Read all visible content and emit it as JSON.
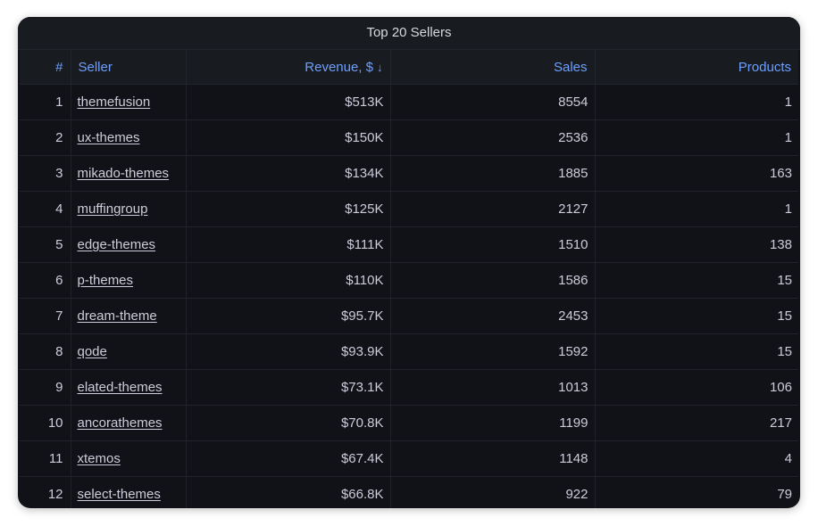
{
  "panel": {
    "title": "Top 20 Sellers"
  },
  "columns": {
    "rank": "#",
    "seller": "Seller",
    "revenue": "Revenue, $",
    "sales": "Sales",
    "products": "Products"
  },
  "sort": {
    "column": "revenue",
    "direction": "descending",
    "icon": "arrow-down-icon"
  },
  "colors": {
    "panel_bg": "#111217",
    "header_text": "#6e9fff",
    "cell_text": "#ccccdc"
  },
  "rows": [
    {
      "rank": "1",
      "seller": "themefusion",
      "revenue": "$513K",
      "sales": "8554",
      "products": "1"
    },
    {
      "rank": "2",
      "seller": "ux-themes",
      "revenue": "$150K",
      "sales": "2536",
      "products": "1"
    },
    {
      "rank": "3",
      "seller": "mikado-themes",
      "revenue": "$134K",
      "sales": "1885",
      "products": "163"
    },
    {
      "rank": "4",
      "seller": "muffingroup",
      "revenue": "$125K",
      "sales": "2127",
      "products": "1"
    },
    {
      "rank": "5",
      "seller": "edge-themes",
      "revenue": "$111K",
      "sales": "1510",
      "products": "138"
    },
    {
      "rank": "6",
      "seller": "p-themes",
      "revenue": "$110K",
      "sales": "1586",
      "products": "15"
    },
    {
      "rank": "7",
      "seller": "dream-theme",
      "revenue": "$95.7K",
      "sales": "2453",
      "products": "15"
    },
    {
      "rank": "8",
      "seller": "qode",
      "revenue": "$93.9K",
      "sales": "1592",
      "products": "15"
    },
    {
      "rank": "9",
      "seller": "elated-themes",
      "revenue": "$73.1K",
      "sales": "1013",
      "products": "106"
    },
    {
      "rank": "10",
      "seller": "ancorathemes",
      "revenue": "$70.8K",
      "sales": "1199",
      "products": "217"
    },
    {
      "rank": "11",
      "seller": "xtemos",
      "revenue": "$67.4K",
      "sales": "1148",
      "products": "4"
    },
    {
      "rank": "12",
      "seller": "select-themes",
      "revenue": "$66.8K",
      "sales": "922",
      "products": "79"
    }
  ]
}
